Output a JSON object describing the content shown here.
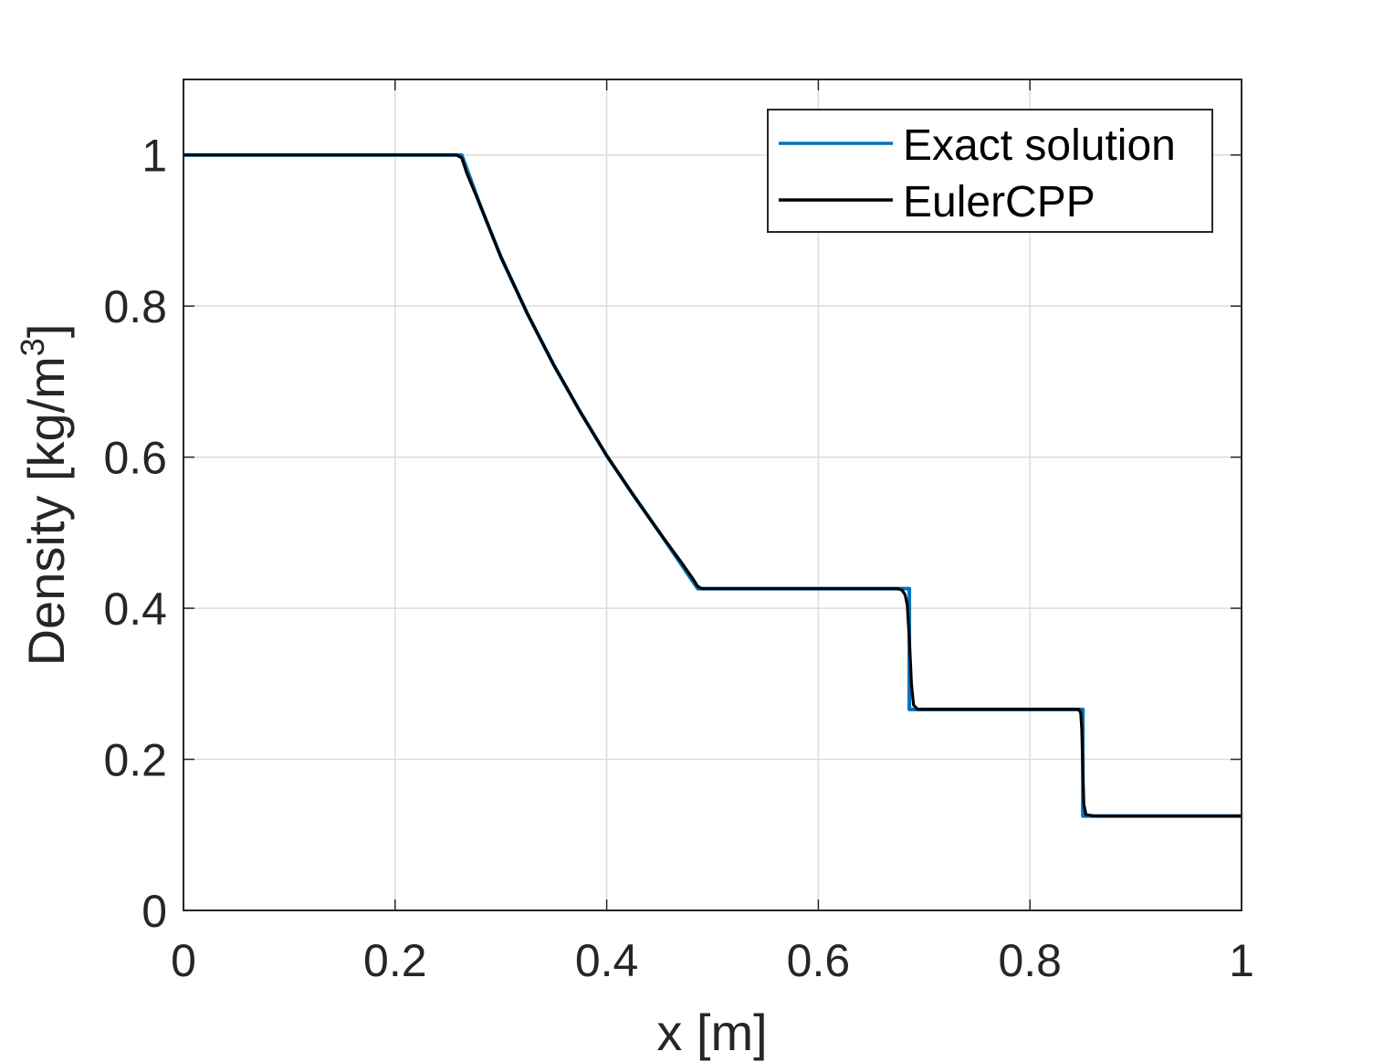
{
  "chart_data": {
    "type": "line",
    "title": "",
    "xlabel": "x [m]",
    "ylabel": "Density  [kg/m",
    "ylabel_superscript": "3",
    "ylabel_suffix": "]",
    "xlim": [
      0,
      1
    ],
    "ylim": [
      0,
      1.1
    ],
    "x_ticks": [
      0,
      0.2,
      0.4,
      0.6,
      0.8,
      1
    ],
    "x_tick_labels": [
      "0",
      "0.2",
      "0.4",
      "0.6",
      "0.8",
      "1"
    ],
    "y_ticks": [
      0,
      0.2,
      0.4,
      0.6,
      0.8,
      1
    ],
    "y_tick_labels": [
      "0",
      "0.2",
      "0.4",
      "0.6",
      "0.8",
      "1"
    ],
    "grid": true,
    "legend_position": "top-right",
    "series": [
      {
        "name": "Exact solution",
        "color": "#0072BD",
        "x": [
          0,
          0.263,
          0.28,
          0.3,
          0.325,
          0.35,
          0.375,
          0.4,
          0.425,
          0.45,
          0.486,
          0.6,
          0.686,
          0.686,
          0.85,
          0.85,
          1.0
        ],
        "y": [
          1.0,
          1.0,
          0.935,
          0.865,
          0.79,
          0.722,
          0.66,
          0.602,
          0.55,
          0.5,
          0.426,
          0.426,
          0.426,
          0.266,
          0.266,
          0.125,
          0.125
        ]
      },
      {
        "name": "EulerCPP",
        "color": "#000000",
        "x": [
          0,
          0.258,
          0.263,
          0.268,
          0.28,
          0.3,
          0.325,
          0.35,
          0.375,
          0.4,
          0.425,
          0.45,
          0.47,
          0.482,
          0.486,
          0.49,
          0.6,
          0.675,
          0.679,
          0.682,
          0.684,
          0.686,
          0.688,
          0.69,
          0.694,
          0.7,
          0.8,
          0.846,
          0.848,
          0.849,
          0.85,
          0.851,
          0.853,
          0.86,
          1.0
        ],
        "y": [
          1.0,
          1.0,
          0.996,
          0.975,
          0.935,
          0.865,
          0.79,
          0.722,
          0.66,
          0.602,
          0.55,
          0.5,
          0.462,
          0.438,
          0.429,
          0.426,
          0.426,
          0.426,
          0.424,
          0.418,
          0.405,
          0.36,
          0.3,
          0.272,
          0.266,
          0.266,
          0.266,
          0.266,
          0.262,
          0.24,
          0.18,
          0.14,
          0.127,
          0.125,
          0.125
        ]
      }
    ]
  }
}
